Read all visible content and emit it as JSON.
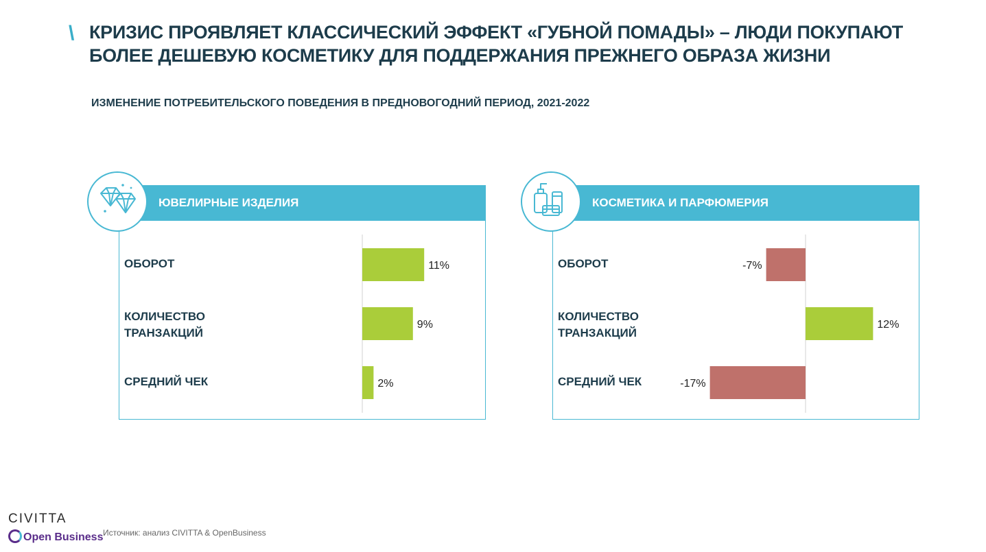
{
  "title": "КРИЗИС ПРОЯВЛЯЕТ КЛАССИЧЕСКИЙ ЭФФЕКТ «ГУБНОЙ ПОМАДЫ» – ЛЮДИ ПОКУПАЮТ БОЛЕЕ ДЕШЕВУЮ КОСМЕТИКУ ДЛЯ ПОДДЕРЖАНИЯ ПРЕЖНЕГО ОБРАЗА ЖИЗНИ",
  "subtitle": "ИЗМЕНЕНИЕ ПОТРЕБИТЕЛЬСКОГО ПОВЕДЕНИЯ В ПРЕДНОВОГОДНИЙ ПЕРИОД, 2021-2022",
  "colors": {
    "accent": "#48b8d3",
    "positive": "#aacd3a",
    "negative": "#bf716b",
    "text": "#1d3c4b"
  },
  "chart_data": [
    {
      "type": "bar",
      "orientation": "horizontal",
      "title": "ЮВЕЛИРНЫЕ ИЗДЕЛИЯ",
      "icon": "diamond-icon",
      "categories": [
        "ОБОРОТ",
        "КОЛИЧЕСТВО ТРАНЗАКЦИЙ",
        "СРЕДНИЙ ЧЕК"
      ],
      "values": [
        11,
        9,
        2
      ],
      "labels": [
        "11%",
        "9%",
        "2%"
      ],
      "unit": "%",
      "xlim": [
        -18,
        13
      ]
    },
    {
      "type": "bar",
      "orientation": "horizontal",
      "title": "КОСМЕТИКА И ПАРФЮМЕРИЯ",
      "icon": "cosmetics-icon",
      "categories": [
        "ОБОРОТ",
        "КОЛИЧЕСТВО ТРАНЗАКЦИЙ",
        "СРЕДНИЙ ЧЕК"
      ],
      "values": [
        -7,
        12,
        -17
      ],
      "labels": [
        "-7%",
        "12%",
        "-17%"
      ],
      "unit": "%",
      "xlim": [
        -18,
        13
      ]
    }
  ],
  "footer": {
    "logo_civitta": "CIVITTA",
    "logo_openbusiness": "Open Business",
    "source": "Источник: анализ CIVITTA & OpenBusiness"
  }
}
